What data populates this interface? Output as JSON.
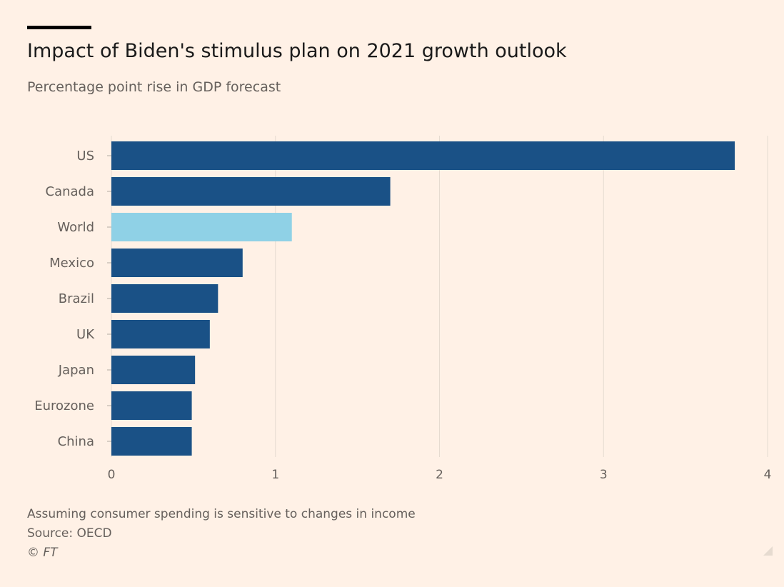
{
  "title": "Impact of Biden's stimulus plan on 2021 growth outlook",
  "subtitle": "Percentage point rise in GDP forecast",
  "footnote": {
    "note": "Assuming consumer spending is sensitive to changes in income",
    "source": "Source: OECD",
    "credit": "© FT"
  },
  "colors": {
    "background": "#fff1e6",
    "bar": "#1a5186",
    "highlight": "#8fd1e6",
    "grid": "#e6dbd0",
    "text": "#66605c"
  },
  "chart_data": {
    "type": "bar",
    "orientation": "horizontal",
    "categories": [
      "US",
      "Canada",
      "World",
      "Mexico",
      "Brazil",
      "UK",
      "Japan",
      "Eurozone",
      "China"
    ],
    "values": [
      3.8,
      1.7,
      1.1,
      0.8,
      0.65,
      0.6,
      0.51,
      0.49,
      0.49
    ],
    "highlight_category": "World",
    "xlim": [
      0,
      4
    ],
    "xticks": [
      "0",
      "1",
      "2",
      "3",
      "4"
    ],
    "grid": true,
    "legend": "none"
  }
}
